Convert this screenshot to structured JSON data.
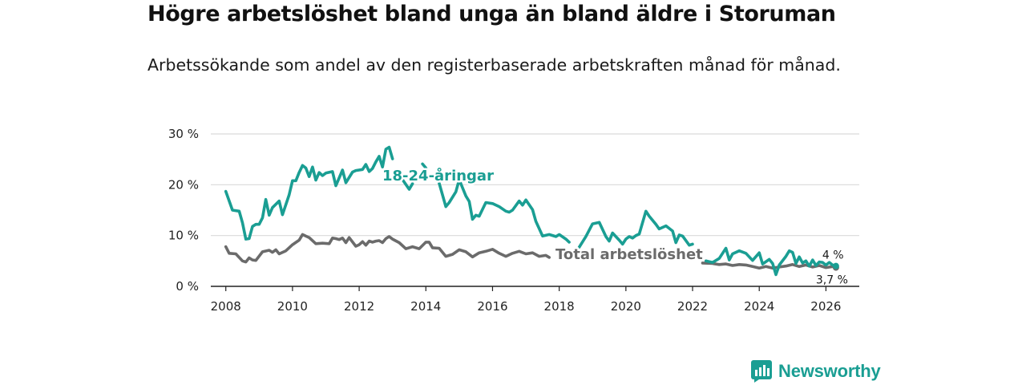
{
  "title": "Högre arbetslöshet bland unga än bland äldre i Storuman",
  "subtitle": "Arbetssökande som andel av den registerbaserade arbetskraften månad för månad.",
  "brand": {
    "name": "Newsworthy",
    "icon": "newsworthy-logo-icon",
    "color": "#1a9e93"
  },
  "chart_data": {
    "type": "line",
    "title": "Högre arbetslöshet bland unga än bland äldre i Storuman",
    "xlabel": "",
    "ylabel": "",
    "xlim": [
      2007.55,
      2027.0
    ],
    "ylim": [
      0,
      30
    ],
    "grid": true,
    "x_ticks": [
      2008,
      2010,
      2012,
      2014,
      2016,
      2018,
      2020,
      2022,
      2024,
      2026
    ],
    "x_tick_labels": [
      "2008",
      "2010",
      "2012",
      "2014",
      "2016",
      "2018",
      "2020",
      "2022",
      "2024",
      "2026"
    ],
    "y_ticks": [
      0,
      10,
      20,
      30
    ],
    "y_tick_labels": [
      "0 %",
      "10 %",
      "20 %",
      "30 %"
    ],
    "series": [
      {
        "name": "18-24-åringar",
        "label": "18-24-åringar",
        "color": "#1a9e93",
        "end_label": "4 %",
        "x": [
          2008.0,
          2008.2,
          2008.4,
          2008.5,
          2008.6,
          2008.7,
          2008.8,
          2008.9,
          2009.0,
          2009.1,
          2009.2,
          2009.3,
          2009.4,
          2009.6,
          2009.7,
          2009.9,
          2010.0,
          2010.1,
          2010.2,
          2010.3,
          2010.4,
          2010.5,
          2010.6,
          2010.7,
          2010.8,
          2010.9,
          2011.0,
          2011.2,
          2011.3,
          2011.5,
          2011.6,
          2011.8,
          2011.9,
          2012.1,
          2012.2,
          2012.3,
          2012.4,
          2012.5,
          2012.6,
          2012.7,
          2012.8,
          2012.9,
          2013.0,
          null,
          2013.3,
          2013.5,
          2013.6,
          null,
          2013.9,
          2014.0,
          null,
          2014.4,
          2014.6,
          2014.7,
          2014.9,
          2015.0,
          2015.2,
          2015.3,
          2015.4,
          2015.5,
          2015.6,
          2015.8,
          2016.0,
          2016.2,
          2016.4,
          2016.5,
          2016.6,
          2016.8,
          2016.9,
          2017.0,
          2017.2,
          2017.3,
          2017.5,
          2017.7,
          2017.9,
          2018.0,
          2018.2,
          2018.3,
          null,
          2018.6,
          2018.8,
          2019.0,
          2019.2,
          2019.4,
          2019.5,
          2019.6,
          2019.8,
          2019.9,
          2020.0,
          2020.1,
          2020.2,
          2020.3,
          2020.4,
          2020.6,
          2020.7,
          2020.9,
          2021.0,
          2021.2,
          2021.4,
          2021.5,
          2021.6,
          2021.7,
          2021.9,
          2022.0,
          null,
          2022.4,
          2022.6,
          2022.8,
          2023.0,
          2023.1,
          2023.2,
          2023.4,
          2023.6,
          2023.8,
          2024.0,
          2024.1,
          2024.3,
          2024.4,
          2024.5,
          2024.6,
          2024.8,
          2024.9,
          2025.0,
          2025.1,
          2025.2,
          2025.3,
          2025.4,
          2025.5,
          2025.6,
          2025.7,
          2025.8,
          2025.9,
          2026.0,
          2026.1,
          2026.2,
          2026.3
        ],
        "values": [
          18.7,
          15.0,
          14.8,
          12.5,
          9.3,
          9.4,
          11.8,
          12.2,
          12.2,
          13.5,
          17.1,
          14.0,
          15.5,
          16.8,
          14.1,
          18.0,
          20.8,
          20.8,
          22.4,
          23.8,
          23.3,
          21.6,
          23.5,
          20.9,
          22.4,
          21.8,
          22.3,
          22.6,
          19.8,
          22.9,
          20.4,
          22.5,
          22.8,
          23.0,
          24.0,
          22.6,
          23.2,
          24.5,
          25.6,
          23.5,
          27.0,
          27.4,
          25.1,
          null,
          21.0,
          19.1,
          20.2,
          null,
          24.1,
          23.3,
          null,
          20.3,
          15.7,
          16.5,
          18.6,
          21.0,
          17.8,
          16.7,
          13.2,
          14.0,
          13.8,
          16.5,
          16.3,
          15.7,
          14.8,
          14.6,
          15.0,
          16.8,
          16.0,
          17.0,
          15.1,
          12.8,
          9.9,
          10.2,
          9.8,
          10.2,
          9.3,
          8.7,
          null,
          7.7,
          9.8,
          12.3,
          12.6,
          9.8,
          8.9,
          10.5,
          9.1,
          8.3,
          9.3,
          9.8,
          9.5,
          10.0,
          10.3,
          14.8,
          13.8,
          12.2,
          11.3,
          11.9,
          10.9,
          8.6,
          10.1,
          9.9,
          8.1,
          8.3,
          null,
          5.0,
          4.7,
          5.5,
          7.5,
          5.2,
          6.4,
          7.0,
          6.5,
          5.1,
          6.6,
          4.4,
          5.3,
          4.5,
          2.3,
          4.2,
          5.9,
          7.0,
          6.7,
          4.5,
          5.8,
          4.6,
          5.0,
          4.0,
          5.2,
          4.1,
          4.8,
          4.7,
          4.2,
          4.7,
          4.2,
          4.0
        ]
      },
      {
        "name": "Total arbetslöshet",
        "label": "Total arbetslöshet",
        "color": "#6b6b6b",
        "end_label": "3,7 %",
        "x": [
          2008.0,
          2008.1,
          2008.3,
          2008.5,
          2008.6,
          2008.7,
          2008.8,
          2008.9,
          2009.1,
          2009.3,
          2009.4,
          2009.5,
          2009.6,
          2009.8,
          2010.0,
          2010.2,
          2010.3,
          2010.5,
          2010.7,
          2010.9,
          2011.1,
          2011.2,
          2011.3,
          2011.4,
          2011.5,
          2011.6,
          2011.7,
          2011.9,
          2012.0,
          2012.1,
          2012.2,
          2012.3,
          2012.4,
          2012.5,
          2012.6,
          2012.7,
          2012.8,
          2012.9,
          2013.0,
          2013.2,
          2013.4,
          2013.6,
          2013.8,
          2014.0,
          2014.1,
          2014.2,
          2014.4,
          2014.6,
          2014.8,
          2015.0,
          2015.2,
          2015.4,
          2015.6,
          2015.8,
          2016.0,
          2016.2,
          2016.4,
          2016.6,
          2016.8,
          2017.0,
          2017.2,
          2017.4,
          2017.6,
          2017.7,
          null,
          2022.3,
          2022.6,
          2022.8,
          2023.0,
          2023.2,
          2023.4,
          2023.6,
          2023.8,
          2024.0,
          2024.2,
          2024.4,
          2024.6,
          2024.8,
          2025.0,
          2025.2,
          2025.4,
          2025.6,
          2025.8,
          2026.0,
          2026.2,
          2026.3
        ],
        "values": [
          7.8,
          6.5,
          6.4,
          5.0,
          4.8,
          5.6,
          5.2,
          5.1,
          6.8,
          7.1,
          6.7,
          7.2,
          6.4,
          7.0,
          8.2,
          9.1,
          10.2,
          9.6,
          8.4,
          8.5,
          8.4,
          9.5,
          9.4,
          9.2,
          9.5,
          8.6,
          9.6,
          7.9,
          8.2,
          8.8,
          8.1,
          8.9,
          8.7,
          8.9,
          9.0,
          8.6,
          9.4,
          9.8,
          9.3,
          8.6,
          7.4,
          7.8,
          7.4,
          8.7,
          8.7,
          7.6,
          7.5,
          5.9,
          6.3,
          7.2,
          6.8,
          5.8,
          6.6,
          6.9,
          7.3,
          6.5,
          5.9,
          6.5,
          6.9,
          6.4,
          6.6,
          5.9,
          6.1,
          5.7,
          null,
          4.6,
          4.5,
          4.3,
          4.4,
          4.1,
          4.3,
          4.2,
          3.9,
          3.6,
          3.9,
          3.6,
          3.8,
          4.0,
          4.3,
          3.9,
          4.2,
          3.8,
          4.1,
          3.7,
          3.9,
          3.7
        ]
      }
    ],
    "annotations": [
      "18-24-åringar",
      "Total arbetslöshet",
      "4 %",
      "3,7 %"
    ]
  }
}
